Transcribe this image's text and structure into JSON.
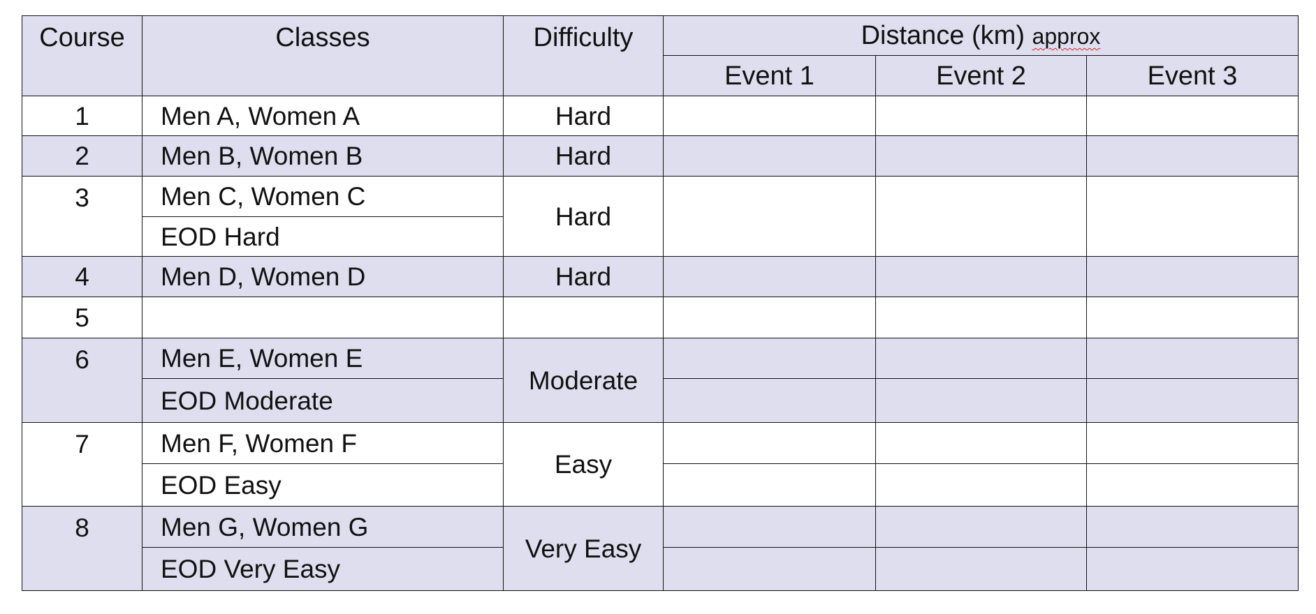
{
  "header": {
    "course": "Course",
    "classes": "Classes",
    "difficulty": "Difficulty",
    "distance": "Distance (km)",
    "approx": "approx",
    "events": [
      "Event 1",
      "Event 2",
      "Event 3"
    ]
  },
  "rows": [
    {
      "course": "1",
      "classes": [
        "Men A, Women A"
      ],
      "difficulty": "Hard"
    },
    {
      "course": "2",
      "classes": [
        "Men B, Women B"
      ],
      "difficulty": "Hard"
    },
    {
      "course": "3",
      "classes": [
        "Men C, Women C",
        "EOD Hard"
      ],
      "difficulty": "Hard"
    },
    {
      "course": "4",
      "classes": [
        "Men D, Women D"
      ],
      "difficulty": "Hard"
    },
    {
      "course": "5",
      "classes": [
        ""
      ],
      "difficulty": ""
    },
    {
      "course": "6",
      "classes": [
        "Men E, Women E",
        "EOD Moderate"
      ],
      "difficulty": "Moderate"
    },
    {
      "course": "7",
      "classes": [
        "Men F, Women F",
        "EOD Easy"
      ],
      "difficulty": "Easy"
    },
    {
      "course": "8",
      "classes": [
        "Men G, Women G",
        "EOD Very Easy"
      ],
      "difficulty": "Very Easy"
    }
  ],
  "colors": {
    "shaded": "#dfdeee",
    "border": "#111111",
    "spellcheck": "#dd2222"
  }
}
